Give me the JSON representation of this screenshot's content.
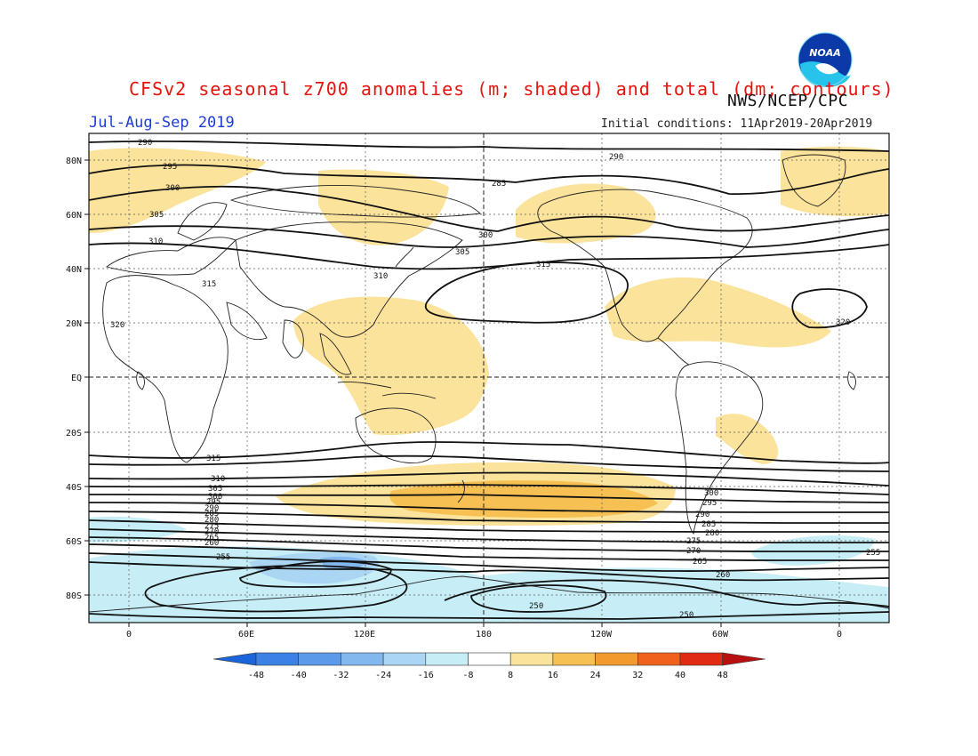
{
  "title": "CFSv2 seasonal z700 anomalies (m; shaded) and total (dm; contours)",
  "agency": "NWS/NCEP/CPC",
  "period": "Jul-Aug-Sep 2019",
  "initial_conditions": "Initial conditions: 11Apr2019-20Apr2019",
  "lat_labels": [
    "80N",
    "60N",
    "40N",
    "20N",
    "EQ",
    "20S",
    "40S",
    "60S",
    "80S"
  ],
  "lon_labels": [
    "0",
    "60E",
    "120E",
    "180",
    "120W",
    "60W",
    "0"
  ],
  "colorbar": {
    "labels": [
      "-48",
      "-40",
      "-32",
      "-24",
      "-16",
      "-8",
      "8",
      "16",
      "24",
      "32",
      "40",
      "48"
    ],
    "colors": [
      "#1c64d9",
      "#3c82e6",
      "#5a9ae8",
      "#82b8ee",
      "#aad6f3",
      "#c7eef7",
      "#ffffff",
      "#fbe39b",
      "#f6c052",
      "#f39a2e",
      "#f0621c",
      "#e02a14",
      "#b81010"
    ]
  },
  "contour_labels": [
    "290",
    "295",
    "300",
    "305",
    "310",
    "315",
    "320",
    "290",
    "285",
    "300",
    "305",
    "310",
    "315",
    "320",
    "315",
    "310",
    "305",
    "300",
    "295",
    "290",
    "285",
    "280",
    "275",
    "270",
    "265",
    "260",
    "255",
    "250",
    "300",
    "295",
    "290",
    "285",
    "280",
    "275",
    "270",
    "265",
    "260",
    "255",
    "250"
  ],
  "chart_data": {
    "type": "map",
    "variable": "z700",
    "anomaly_units": "m",
    "contour_units": "dm",
    "contour_levels": [
      250,
      255,
      260,
      265,
      270,
      275,
      280,
      285,
      290,
      295,
      300,
      305,
      310,
      315,
      320
    ],
    "shading_levels": [
      -48,
      -40,
      -32,
      -24,
      -16,
      -8,
      8,
      16,
      24,
      32,
      40,
      48
    ]
  }
}
